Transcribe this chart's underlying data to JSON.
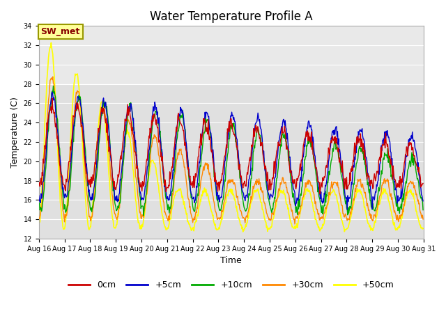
{
  "title": "Water Temperature Profile A",
  "xlabel": "Time",
  "ylabel": "Temperature (C)",
  "ylim": [
    12,
    34
  ],
  "x_tick_labels": [
    "Aug 16",
    "Aug 17",
    "Aug 18",
    "Aug 19",
    "Aug 20",
    "Aug 21",
    "Aug 22",
    "Aug 23",
    "Aug 24",
    "Aug 25",
    "Aug 26",
    "Aug 27",
    "Aug 28",
    "Aug 29",
    "Aug 30",
    "Aug 31"
  ],
  "plot_bg": "#e0e0e0",
  "lines": [
    {
      "label": "0cm",
      "color": "#cc0000"
    },
    {
      "label": "+5cm",
      "color": "#0000cc"
    },
    {
      "label": "+10cm",
      "color": "#00aa00"
    },
    {
      "label": "+30cm",
      "color": "#ff8800"
    },
    {
      "label": "+50cm",
      "color": "#ffff00"
    }
  ],
  "sw_met_box_color": "#ffff99",
  "sw_met_text_color": "#880000",
  "sw_met_border": "#999900",
  "title_fontsize": 12,
  "axis_fontsize": 9,
  "tick_fontsize": 7,
  "legend_fontsize": 9,
  "n_days": 15,
  "n_per_day": 48,
  "trough_min_0cm": 17.5,
  "trough_min_5cm": 16.0,
  "trough_min_10cm": 15.0,
  "trough_min_30cm": 14.0,
  "trough_min_50cm": 13.0,
  "peak_max_0cm": 26.0,
  "peak_max_5cm": 27.0,
  "peak_max_10cm": 27.5,
  "peak_max_30cm": 29.5,
  "peak_max_50cm": 33.5,
  "peak_decay_0cm": 0.3,
  "peak_decay_5cm": 0.3,
  "peak_decay_10cm": 0.5,
  "peak_decay_30cm": 1.5,
  "peak_decay_50cm": 3.0,
  "lag_0cm": 0.0,
  "lag_5cm": 0.04,
  "lag_10cm": 0.06,
  "lag_30cm": 0.02,
  "lag_50cm": -0.03,
  "noise_0cm": 0.4,
  "noise_5cm": 0.3,
  "noise_10cm": 0.3,
  "noise_30cm": 0.2,
  "noise_50cm": 0.15
}
